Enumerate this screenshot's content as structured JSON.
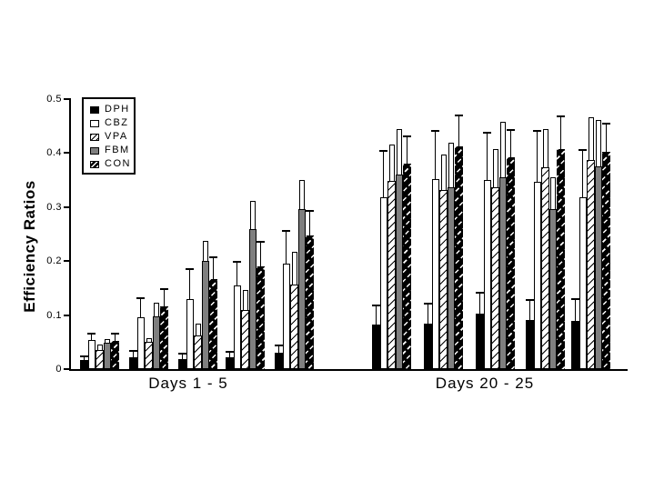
{
  "chart_data": {
    "type": "bar",
    "title": "",
    "xlabel": "",
    "ylabel": "Efficiency Ratios",
    "ylim": [
      0,
      0.5
    ],
    "yticks": [
      "0",
      "0.1",
      "0.2",
      "0.3",
      "0.4",
      "0.5"
    ],
    "grid": false,
    "legend_position": "upper-left-inside",
    "colors": {
      "bar_black": "#000000",
      "bar_white": "#ffffff",
      "bar_gray": "#7f7f7f"
    },
    "legend": [
      {
        "name": "DPH",
        "pattern": "solid-black"
      },
      {
        "name": "CBZ",
        "pattern": "open-white"
      },
      {
        "name": "VPA",
        "pattern": "diagonal-hatch-on-white"
      },
      {
        "name": "FBM",
        "pattern": "solid-gray"
      },
      {
        "name": "CON",
        "pattern": "white-diagonal-hatch-on-black"
      }
    ],
    "series_names": [
      "DPH",
      "CBZ",
      "VPA",
      "FBM",
      "CON"
    ],
    "error_bar_style": {
      "DPH": "line",
      "CBZ": "line",
      "VPA": "box",
      "FBM": "box",
      "CON": "line"
    },
    "groups": [
      {
        "label": "Days 1 - 5",
        "clusters": [
          {
            "values": [
              0.017,
              0.054,
              0.035,
              0.049,
              0.052
            ],
            "error_tops": [
              0.026,
              0.067,
              0.046,
              0.056,
              0.068
            ]
          },
          {
            "values": [
              0.022,
              0.096,
              0.05,
              0.097,
              0.116
            ],
            "error_tops": [
              0.035,
              0.133,
              0.058,
              0.123,
              0.15
            ]
          },
          {
            "values": [
              0.019,
              0.129,
              0.062,
              0.2,
              0.166
            ],
            "error_tops": [
              0.03,
              0.187,
              0.085,
              0.237,
              0.208
            ]
          },
          {
            "values": [
              0.022,
              0.155,
              0.11,
              0.26,
              0.191
            ],
            "error_tops": [
              0.034,
              0.2,
              0.147,
              0.311,
              0.238
            ]
          },
          {
            "values": [
              0.031,
              0.195,
              0.157,
              0.297,
              0.247
            ],
            "error_tops": [
              0.045,
              0.258,
              0.218,
              0.351,
              0.294
            ]
          }
        ]
      },
      {
        "label": "Days 20 - 25",
        "clusters": [
          {
            "values": [
              0.082,
              0.318,
              0.348,
              0.361,
              0.38
            ],
            "error_tops": [
              0.119,
              0.405,
              0.416,
              0.445,
              0.433
            ]
          },
          {
            "values": [
              0.084,
              0.352,
              0.332,
              0.336,
              0.413
            ],
            "error_tops": [
              0.123,
              0.443,
              0.397,
              0.42,
              0.471
            ]
          },
          {
            "values": [
              0.103,
              0.35,
              0.336,
              0.356,
              0.392
            ],
            "error_tops": [
              0.143,
              0.44,
              0.408,
              0.458,
              0.445
            ]
          },
          {
            "values": [
              0.091,
              0.346,
              0.373,
              0.296,
              0.408
            ],
            "error_tops": [
              0.129,
              0.443,
              0.445,
              0.355,
              0.47
            ]
          },
          {
            "values": [
              0.089,
              0.318,
              0.387,
              0.376,
              0.402
            ],
            "error_tops": [
              0.131,
              0.407,
              0.467,
              0.461,
              0.457
            ]
          }
        ]
      }
    ]
  }
}
